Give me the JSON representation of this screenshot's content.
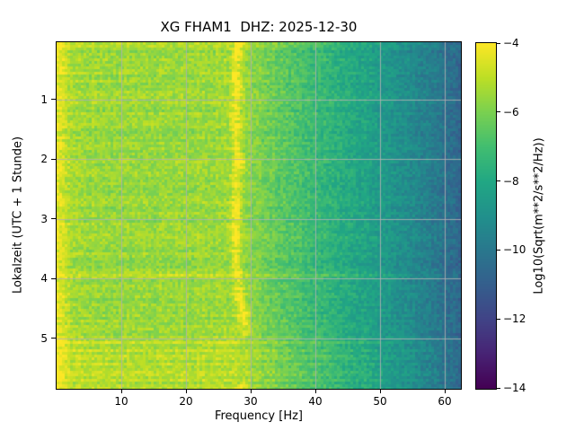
{
  "chart_data": {
    "type": "heatmap",
    "subtype": "seismic-spectrogram",
    "title": "XG FHAM1  DHZ: 2025-12-30",
    "xlabel": "Frequency [Hz]",
    "ylabel": "Lokalzeit (UTC + 1 Stunde)",
    "colorbar_label": "Log10(Sqrt(m**2/s**2/Hz))",
    "x_range_hz": [
      0,
      62.5
    ],
    "y_range_hours": [
      0.04,
      5.85
    ],
    "clim": [
      -14,
      -4
    ],
    "x_ticks": [
      10,
      20,
      30,
      40,
      50,
      60
    ],
    "x_tick_labels": [
      "10",
      "20",
      "30",
      "40",
      "50",
      "60"
    ],
    "y_ticks": [
      1,
      2,
      3,
      4,
      5
    ],
    "y_tick_labels": [
      "1",
      "2",
      "3",
      "4",
      "5"
    ],
    "colorbar_tick_values": [
      -4,
      -6,
      -8,
      -10,
      -12,
      -14
    ],
    "colorbar_tick_labels": [
      "−4",
      "−6",
      "−8",
      "−10",
      "−12",
      "−14"
    ],
    "grid": true,
    "grid_color": "rgba(178,178,178,0.85)",
    "colormap": {
      "name": "viridis",
      "stops": [
        [
          0.0,
          "#440154"
        ],
        [
          0.1,
          "#482475"
        ],
        [
          0.2,
          "#414487"
        ],
        [
          0.3,
          "#355f8d"
        ],
        [
          0.4,
          "#2a788e"
        ],
        [
          0.5,
          "#21918c"
        ],
        [
          0.6,
          "#22a884"
        ],
        [
          0.7,
          "#42be71"
        ],
        [
          0.8,
          "#7ad151"
        ],
        [
          0.9,
          "#bddf26"
        ],
        [
          1.0,
          "#fde725"
        ]
      ]
    },
    "background_profile_db": [
      [
        0,
        -4.35
      ],
      [
        0.8,
        -4.55
      ],
      [
        1.6,
        -5.0
      ],
      [
        3,
        -5.45
      ],
      [
        10,
        -5.5
      ],
      [
        18,
        -5.55
      ],
      [
        24,
        -5.5
      ],
      [
        28,
        -5.45
      ],
      [
        31,
        -5.9
      ],
      [
        35,
        -6.5
      ],
      [
        40,
        -7.2
      ],
      [
        45,
        -7.9
      ],
      [
        50,
        -8.55
      ],
      [
        55,
        -9.3
      ],
      [
        59,
        -9.95
      ],
      [
        62.5,
        -10.7
      ]
    ],
    "tonal_signal": {
      "description": "narrowband wandering tone near 28 Hz, fades out near hour 4.95",
      "path_hz_by_hour": [
        [
          0.0,
          28.2
        ],
        [
          0.4,
          27.7
        ],
        [
          0.8,
          28.0
        ],
        [
          1.2,
          27.6
        ],
        [
          1.6,
          27.9
        ],
        [
          2.0,
          28.1
        ],
        [
          2.4,
          27.6
        ],
        [
          2.8,
          27.9
        ],
        [
          3.2,
          27.5
        ],
        [
          3.6,
          27.8
        ],
        [
          4.0,
          27.9
        ],
        [
          4.3,
          28.3
        ],
        [
          4.6,
          28.8
        ],
        [
          4.85,
          29.3
        ],
        [
          4.95,
          29.4
        ]
      ],
      "amplitude_db": 1.35,
      "width_hz": 0.5,
      "end_hour": 4.95
    },
    "late_tone": {
      "path_hz_by_hour": [
        [
          5.7,
          28.9
        ],
        [
          5.85,
          28.5
        ]
      ],
      "amplitude_db": 1.2,
      "width_hz": 0.45
    },
    "broadband_noise_bands": [
      {
        "hour": 0.07,
        "sigma_hour": 0.03,
        "amp_db": 0.45
      },
      {
        "hour": 0.32,
        "sigma_hour": 0.014,
        "amp_db": 0.3
      },
      {
        "hour": 0.62,
        "sigma_hour": 0.012,
        "amp_db": 0.2
      },
      {
        "hour": 0.95,
        "sigma_hour": 0.014,
        "amp_db": 0.28
      },
      {
        "hour": 1.3,
        "sigma_hour": 0.012,
        "amp_db": 0.18
      },
      {
        "hour": 1.63,
        "sigma_hour": 0.014,
        "amp_db": 0.22
      },
      {
        "hour": 2.2,
        "sigma_hour": 0.012,
        "amp_db": 0.18
      },
      {
        "hour": 2.52,
        "sigma_hour": 0.012,
        "amp_db": 0.2
      },
      {
        "hour": 2.9,
        "sigma_hour": 0.012,
        "amp_db": 0.15
      },
      {
        "hour": 3.3,
        "sigma_hour": 0.012,
        "amp_db": 0.18
      },
      {
        "hour": 3.94,
        "sigma_hour": 0.022,
        "amp_db": 0.85
      },
      {
        "hour": 4.12,
        "sigma_hour": 0.014,
        "amp_db": 0.3
      },
      {
        "hour": 4.55,
        "sigma_hour": 0.012,
        "amp_db": 0.2
      },
      {
        "hour": 5.07,
        "sigma_hour": 0.022,
        "amp_db": 0.65
      },
      {
        "hour": 5.19,
        "sigma_hour": 0.016,
        "amp_db": 0.5
      },
      {
        "hour": 5.31,
        "sigma_hour": 0.02,
        "amp_db": 0.6
      },
      {
        "hour": 5.44,
        "sigma_hour": 0.016,
        "amp_db": 0.5
      },
      {
        "hour": 5.57,
        "sigma_hour": 0.02,
        "amp_db": 0.55
      },
      {
        "hour": 5.69,
        "sigma_hour": 0.016,
        "amp_db": 0.5
      },
      {
        "hour": 5.8,
        "sigma_hour": 0.022,
        "amp_db": 0.65
      },
      {
        "hour": 5.5,
        "sigma_hour": 0.4,
        "amp_db": 0.22
      }
    ],
    "noise": {
      "pixel_db": 0.55,
      "row_db": 0.32,
      "col_db": 0.12,
      "seed": 20251230
    }
  }
}
